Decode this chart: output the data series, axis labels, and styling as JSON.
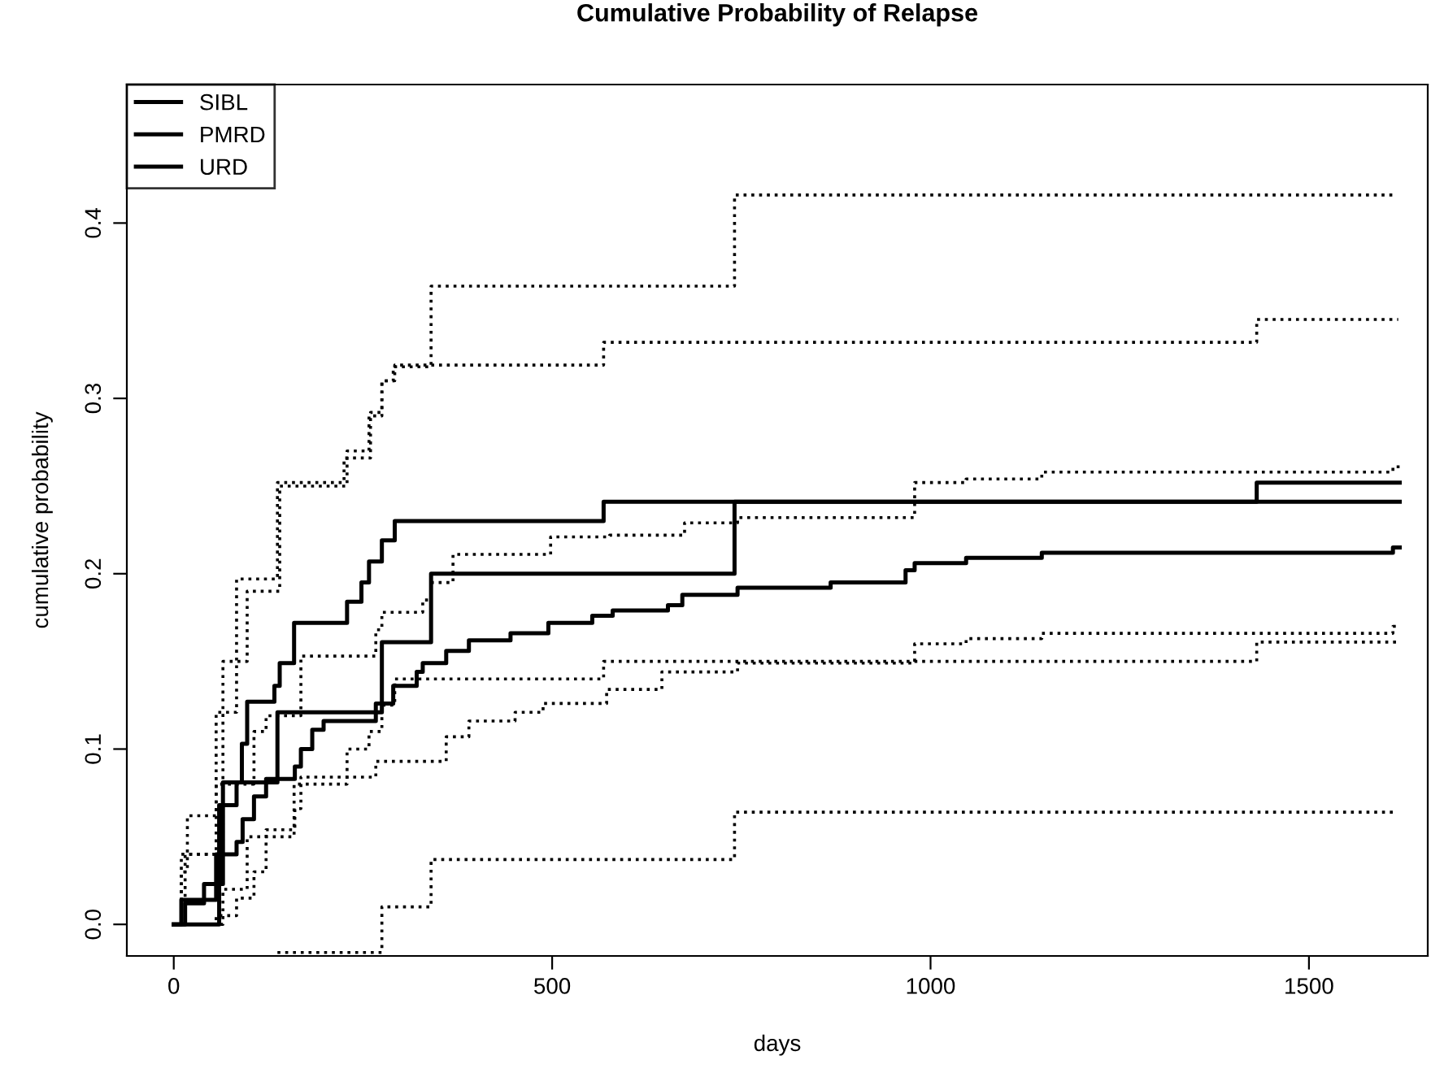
{
  "chart_data": {
    "type": "step",
    "title": "Cumulative Probability of Relapse",
    "xlabel": "days",
    "ylabel": "cumulative probability",
    "xlim": [
      -62,
      1657
    ],
    "ylim": [
      -0.018,
      0.479
    ],
    "xticks": [
      0,
      500,
      1000,
      1500
    ],
    "yticks": [
      {
        "value": 0,
        "label": "0.0"
      },
      {
        "value": 0.1,
        "label": "0.1"
      },
      {
        "value": 0.2,
        "label": "0.2"
      },
      {
        "value": 0.3,
        "label": "0.3"
      },
      {
        "value": 0.4,
        "label": "0.4"
      }
    ],
    "grid": false,
    "legend": "top left",
    "line_style": "solid",
    "series": [
      {
        "name": "SIBL",
        "color": "#000000",
        "x": [
          0,
          15,
          40,
          65,
          90,
          97,
          133,
          140,
          159,
          229,
          248,
          258,
          275,
          292,
          568,
          1620
        ],
        "values": [
          0,
          0.012,
          0.023,
          0.081,
          0.103,
          0.127,
          0.136,
          0.149,
          0.172,
          0.184,
          0.195,
          0.207,
          0.219,
          0.23,
          0.241,
          0.241
        ]
      },
      {
        "name": "PMRD",
        "color": "#000000",
        "x": [
          0,
          60,
          83,
          137,
          275,
          340,
          741,
          1431,
          1620
        ],
        "values": [
          0,
          0.068,
          0.081,
          0.121,
          0.161,
          0.2,
          0.241,
          0.252,
          0.252
        ]
      },
      {
        "name": "URD",
        "color": "#000000",
        "x": [
          0,
          10,
          56,
          83,
          91,
          106,
          122,
          160,
          168,
          183,
          198,
          267,
          290,
          321,
          329,
          360,
          390,
          445,
          495,
          553,
          580,
          653,
          672,
          745,
          868,
          967,
          979,
          1047,
          1147,
          1611,
          1620
        ],
        "values": [
          0,
          0.014,
          0.04,
          0.047,
          0.06,
          0.073,
          0.083,
          0.09,
          0.1,
          0.111,
          0.116,
          0.126,
          0.136,
          0.144,
          0.149,
          0.156,
          0.162,
          0.166,
          0.172,
          0.176,
          0.179,
          0.182,
          0.188,
          0.192,
          0.195,
          0.202,
          0.206,
          0.209,
          0.212,
          0.215,
          0.215
        ]
      },
      {
        "color": "#000000",
        "line_style": "dotted",
        "x": [
          0,
          10,
          18,
          56,
          83,
          137,
          225,
          260,
          275,
          290,
          340,
          741,
          1615
        ],
        "values": [
          0,
          0.03,
          0.062,
          0.121,
          0.197,
          0.252,
          0.266,
          0.292,
          0.31,
          0.318,
          0.364,
          0.416,
          0.416
        ]
      },
      {
        "color": "#000000",
        "line_style": "dotted",
        "x": [
          137,
          275,
          340,
          741,
          1611
        ],
        "values": [
          -0.016,
          0.01,
          0.037,
          0.064,
          0.064
        ]
      },
      {
        "color": "#000000",
        "line_style": "dotted",
        "x": [
          0,
          15,
          65,
          97,
          140,
          229,
          258,
          275,
          292,
          568,
          1431,
          1618
        ],
        "values": [
          0,
          0.04,
          0.15,
          0.19,
          0.25,
          0.27,
          0.29,
          0.31,
          0.319,
          0.332,
          0.345,
          0.345
        ]
      },
      {
        "color": "#000000",
        "line_style": "dotted",
        "x": [
          0,
          65,
          97,
          159,
          229,
          258,
          275,
          292,
          568,
          1431,
          1618
        ],
        "values": [
          0,
          0.02,
          0.05,
          0.08,
          0.1,
          0.11,
          0.125,
          0.14,
          0.15,
          0.161,
          0.161
        ]
      },
      {
        "color": "#000000",
        "line_style": "dotted",
        "x": [
          0,
          10,
          56,
          106,
          122,
          168,
          267,
          275,
          329,
          340,
          369,
          498,
          576,
          675,
          745,
          979,
          1047,
          1147,
          1611,
          1620
        ],
        "values": [
          0,
          0.04,
          0.08,
          0.11,
          0.119,
          0.153,
          0.168,
          0.178,
          0.185,
          0.195,
          0.211,
          0.221,
          0.222,
          0.229,
          0.232,
          0.252,
          0.254,
          0.258,
          0.261,
          0.261
        ]
      },
      {
        "color": "#000000",
        "line_style": "dotted",
        "x": [
          0,
          56,
          83,
          106,
          122,
          160,
          168,
          267,
          360,
          390,
          451,
          488,
          572,
          645,
          745,
          979,
          1047,
          1147,
          1611,
          1620
        ],
        "values": [
          0,
          0.005,
          0.015,
          0.03,
          0.054,
          0.066,
          0.084,
          0.093,
          0.107,
          0.116,
          0.121,
          0.126,
          0.134,
          0.144,
          0.149,
          0.16,
          0.163,
          0.166,
          0.17,
          0.17
        ]
      }
    ]
  }
}
